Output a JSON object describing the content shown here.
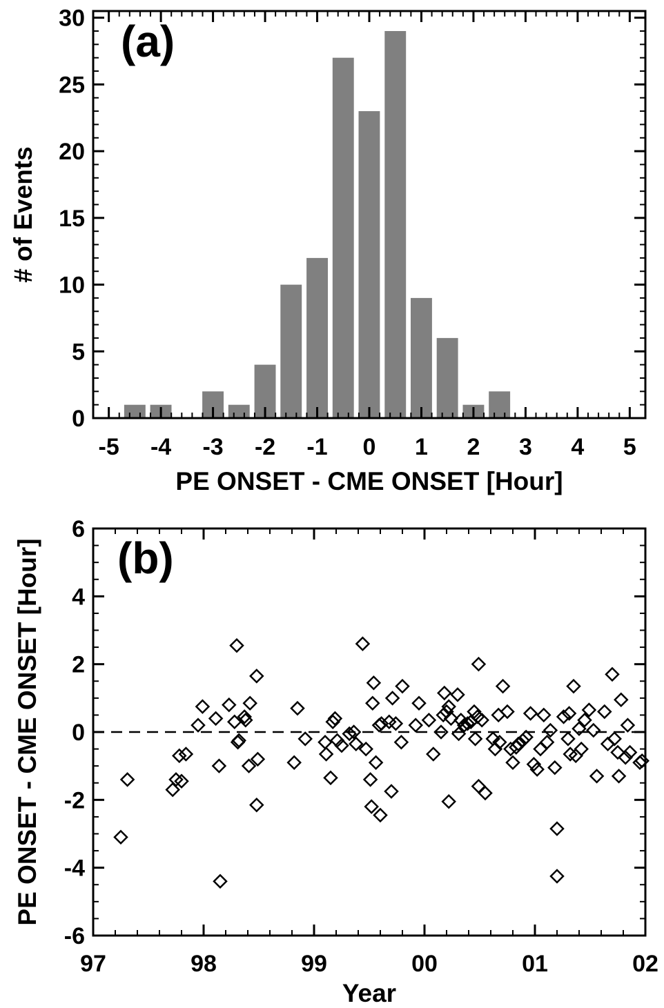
{
  "chart_data": [
    {
      "type": "bar",
      "panel_label": "(a)",
      "title": "",
      "xlabel": "PE ONSET - CME ONSET [Hour]",
      "ylabel": "# of Events",
      "xlim": [
        -5.3,
        5.3
      ],
      "ylim": [
        0,
        30.5
      ],
      "xticks": [
        -5,
        -4,
        -3,
        -2,
        -1,
        0,
        1,
        2,
        3,
        4,
        5
      ],
      "xtick_labels": [
        "-5",
        "-4",
        "-3",
        "-2",
        "-1",
        "0",
        "1",
        "2",
        "3",
        "4",
        "5"
      ],
      "yticks": [
        0,
        5,
        10,
        15,
        20,
        25,
        30
      ],
      "ytick_labels": [
        "0",
        "5",
        "10",
        "15",
        "20",
        "25",
        "30"
      ],
      "bin_width": 0.5,
      "bar_color": "#808080",
      "x": [
        -4.5,
        -4.0,
        -3.0,
        -2.5,
        -2.0,
        -1.5,
        -1.0,
        -0.5,
        0.0,
        0.5,
        1.0,
        1.5,
        2.0,
        2.5
      ],
      "values": [
        1,
        1,
        2,
        1,
        4,
        10,
        12,
        27,
        23,
        29,
        9,
        6,
        1,
        2
      ],
      "grid": false,
      "legend": "none"
    },
    {
      "type": "scatter",
      "panel_label": "(b)",
      "title": "",
      "xlabel": "Year",
      "ylabel": "PE ONSET - CME ONSET [Hour]",
      "xlim": [
        1997,
        2002
      ],
      "ylim": [
        -6,
        6
      ],
      "xticks": [
        1997,
        1998,
        1999,
        2000,
        2001,
        2002
      ],
      "xtick_labels": [
        "97",
        "98",
        "99",
        "00",
        "01",
        "02"
      ],
      "yticks": [
        -6,
        -4,
        -2,
        0,
        2,
        4,
        6
      ],
      "ytick_labels": [
        "-6",
        "-4",
        "-2",
        "0",
        "2",
        "4",
        "6"
      ],
      "marker": "diamond-open",
      "reference_line": {
        "y": 0,
        "style": "dashed"
      },
      "grid": false,
      "legend": "none",
      "points": [
        [
          1997.25,
          -3.1
        ],
        [
          1997.31,
          -1.4
        ],
        [
          1997.72,
          -1.7
        ],
        [
          1997.75,
          -1.4
        ],
        [
          1997.78,
          -0.7
        ],
        [
          1997.8,
          -1.45
        ],
        [
          1997.84,
          -0.65
        ],
        [
          1997.95,
          0.2
        ],
        [
          1997.99,
          0.75
        ],
        [
          1998.11,
          0.4
        ],
        [
          1998.14,
          -1.0
        ],
        [
          1998.15,
          -4.4
        ],
        [
          1998.23,
          0.8
        ],
        [
          1998.28,
          0.3
        ],
        [
          1998.3,
          2.55
        ],
        [
          1998.31,
          -0.3
        ],
        [
          1998.32,
          -0.25
        ],
        [
          1998.37,
          0.45
        ],
        [
          1998.38,
          0.35
        ],
        [
          1998.41,
          -1.0
        ],
        [
          1998.42,
          0.85
        ],
        [
          1998.48,
          1.65
        ],
        [
          1998.49,
          -0.8
        ],
        [
          1998.48,
          -2.15
        ],
        [
          1998.82,
          -0.9
        ],
        [
          1998.85,
          0.7
        ],
        [
          1998.92,
          -0.2
        ],
        [
          1999.1,
          -0.3
        ],
        [
          1999.11,
          -0.65
        ],
        [
          1999.15,
          -1.35
        ],
        [
          1999.17,
          0.3
        ],
        [
          1999.19,
          0.4
        ],
        [
          1999.21,
          -0.25
        ],
        [
          1999.25,
          -0.4
        ],
        [
          1999.32,
          -0.05
        ],
        [
          1999.36,
          0.0
        ],
        [
          1999.38,
          -0.35
        ],
        [
          1999.44,
          2.6
        ],
        [
          1999.47,
          -0.5
        ],
        [
          1999.51,
          -1.4
        ],
        [
          1999.52,
          -2.2
        ],
        [
          1999.53,
          0.85
        ],
        [
          1999.54,
          1.45
        ],
        [
          1999.56,
          -0.9
        ],
        [
          1999.59,
          0.2
        ],
        [
          1999.6,
          -2.45
        ],
        [
          1999.61,
          0.25
        ],
        [
          1999.68,
          0.3
        ],
        [
          1999.7,
          -1.75
        ],
        [
          1999.71,
          1.0
        ],
        [
          1999.74,
          0.25
        ],
        [
          1999.8,
          1.35
        ],
        [
          1999.79,
          -0.3
        ],
        [
          1999.92,
          0.2
        ],
        [
          1999.95,
          0.85
        ],
        [
          2000.04,
          0.35
        ],
        [
          2000.08,
          -0.65
        ],
        [
          2000.15,
          0.0
        ],
        [
          2000.17,
          0.5
        ],
        [
          2000.18,
          1.15
        ],
        [
          2000.2,
          0.6
        ],
        [
          2000.22,
          0.75
        ],
        [
          2000.22,
          -2.05
        ],
        [
          2000.24,
          0.4
        ],
        [
          2000.3,
          1.1
        ],
        [
          2000.31,
          -0.05
        ],
        [
          2000.33,
          0.35
        ],
        [
          2000.36,
          0.2
        ],
        [
          2000.39,
          0.25
        ],
        [
          2000.42,
          0.3
        ],
        [
          2000.45,
          0.6
        ],
        [
          2000.46,
          -0.2
        ],
        [
          2000.48,
          0.45
        ],
        [
          2000.49,
          2.0
        ],
        [
          2000.49,
          -1.6
        ],
        [
          2000.52,
          0.35
        ],
        [
          2000.55,
          -1.8
        ],
        [
          2000.62,
          -0.2
        ],
        [
          2000.64,
          -0.5
        ],
        [
          2000.67,
          0.5
        ],
        [
          2000.68,
          -0.3
        ],
        [
          2000.71,
          1.35
        ],
        [
          2000.75,
          0.6
        ],
        [
          2000.78,
          -0.5
        ],
        [
          2000.8,
          -0.9
        ],
        [
          2000.83,
          -0.45
        ],
        [
          2000.85,
          -0.35
        ],
        [
          2000.89,
          -0.25
        ],
        [
          2000.92,
          -0.15
        ],
        [
          2000.96,
          0.55
        ],
        [
          2000.99,
          -0.95
        ],
        [
          2001.02,
          -1.1
        ],
        [
          2001.05,
          -0.5
        ],
        [
          2001.08,
          0.5
        ],
        [
          2001.11,
          -0.3
        ],
        [
          2001.14,
          0.05
        ],
        [
          2001.18,
          -1.05
        ],
        [
          2001.2,
          -2.85
        ],
        [
          2001.2,
          -4.25
        ],
        [
          2001.26,
          0.45
        ],
        [
          2001.3,
          -0.2
        ],
        [
          2001.31,
          0.55
        ],
        [
          2001.32,
          -0.65
        ],
        [
          2001.35,
          1.35
        ],
        [
          2001.37,
          -0.7
        ],
        [
          2001.4,
          0.1
        ],
        [
          2001.42,
          -0.5
        ],
        [
          2001.45,
          0.35
        ],
        [
          2001.49,
          0.65
        ],
        [
          2001.53,
          0.05
        ],
        [
          2001.56,
          -1.3
        ],
        [
          2001.63,
          0.6
        ],
        [
          2001.66,
          -0.35
        ],
        [
          2001.7,
          1.7
        ],
        [
          2001.72,
          -0.2
        ],
        [
          2001.75,
          -0.6
        ],
        [
          2001.76,
          -1.3
        ],
        [
          2001.78,
          0.95
        ],
        [
          2001.82,
          -0.75
        ],
        [
          2001.84,
          0.2
        ],
        [
          2001.86,
          -0.6
        ],
        [
          2001.95,
          -0.9
        ],
        [
          2001.97,
          -0.85
        ]
      ]
    }
  ]
}
